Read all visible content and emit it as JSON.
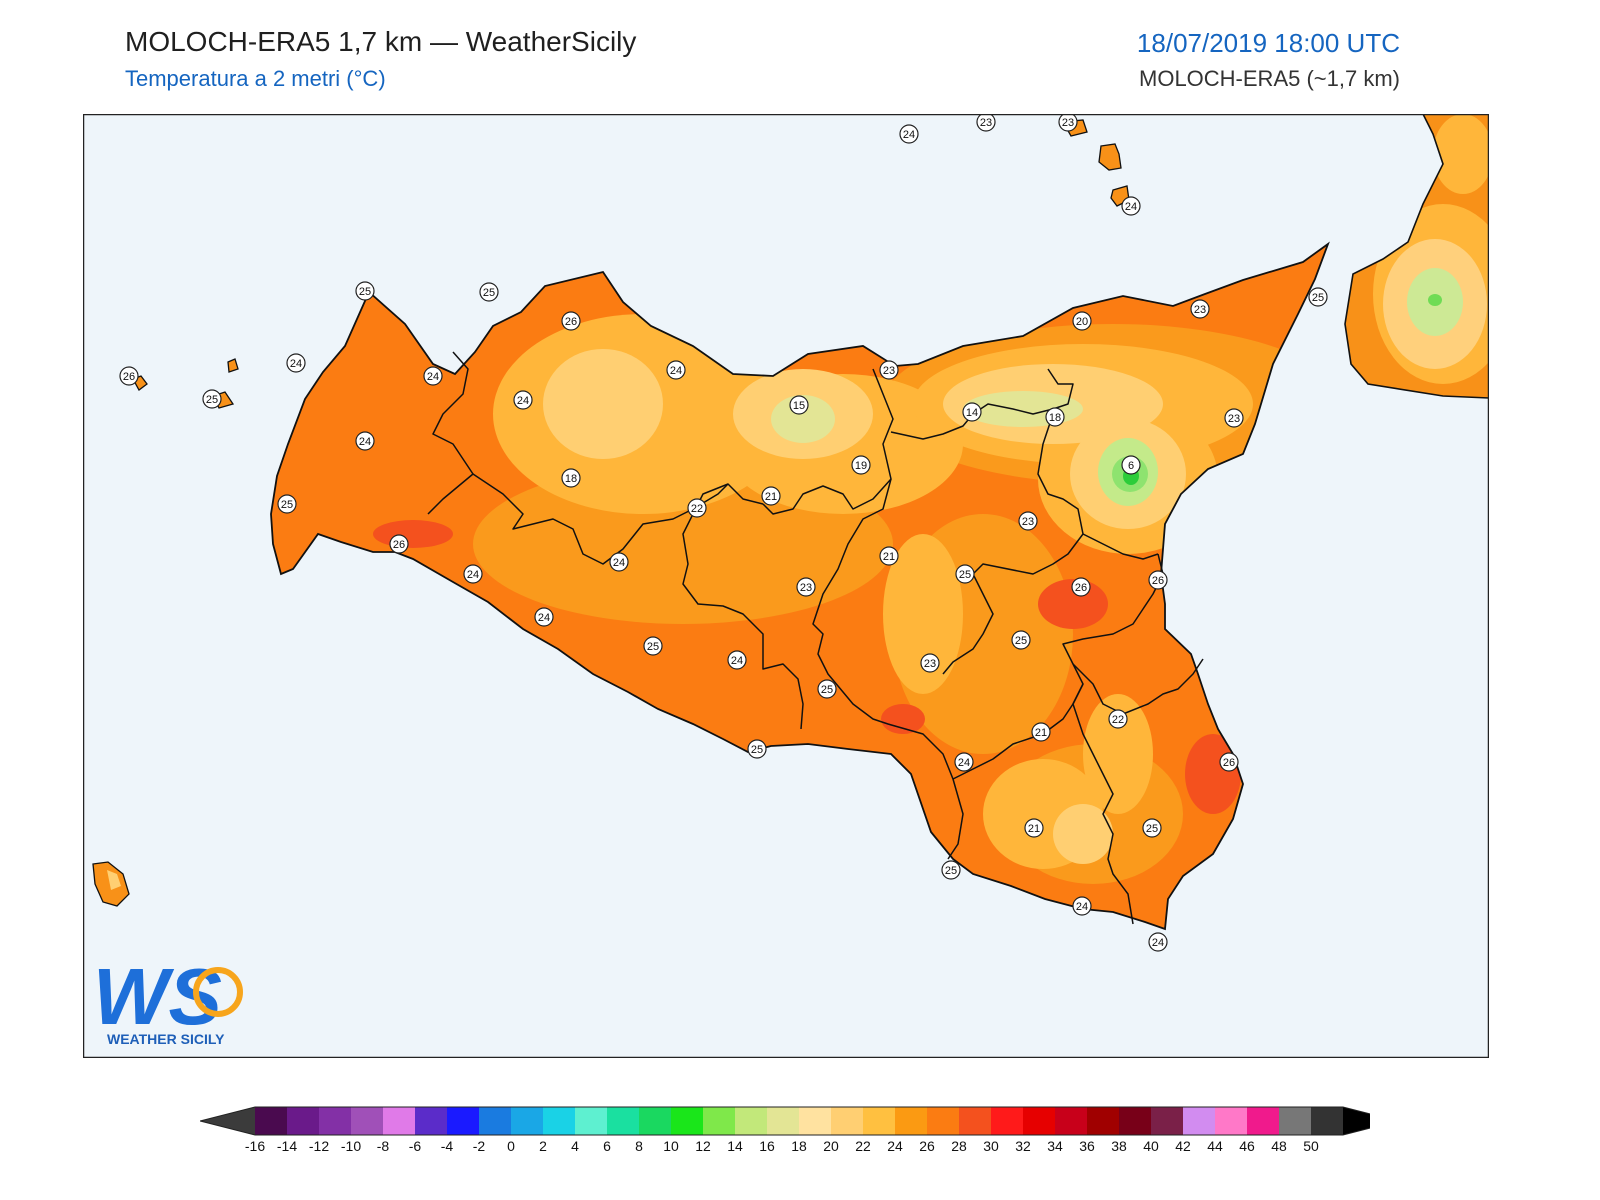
{
  "header": {
    "title": "MOLOCH-ERA5 1,7 km — WeatherSicily",
    "subtitle": "Temperatura a 2 metri (°C)",
    "datetime": "18/07/2019 18:00 UTC",
    "model": "MOLOCH-ERA5 (~1,7 km)"
  },
  "logo": {
    "letters": "WS",
    "name": "WEATHER SICILY"
  },
  "colors": {
    "sea": "#eef5fa",
    "frame": "#222222",
    "land_base": "#fb7c12",
    "land_mid": "#fa9a1c",
    "land_warm": "#ffb63a",
    "land_mild": "#ffcf72",
    "land_cool": "#e3e595",
    "land_cold": "#8ee36f",
    "land_hot": "#f4511e",
    "calabria_outer": "#f89118",
    "calabria_inner": "#ffd07c",
    "calabria_core": "#cde995"
  },
  "stations": [
    {
      "label": "24"
    },
    {
      "label": "23"
    },
    {
      "label": "23"
    },
    {
      "label": "24"
    },
    {
      "label": "25"
    },
    {
      "label": "25"
    },
    {
      "label": "26"
    },
    {
      "label": "24"
    },
    {
      "label": "26"
    },
    {
      "label": "24"
    },
    {
      "label": "25"
    },
    {
      "label": "24"
    },
    {
      "label": "24"
    },
    {
      "label": "25"
    },
    {
      "label": "18"
    },
    {
      "label": "26"
    },
    {
      "label": "24"
    },
    {
      "label": "15"
    },
    {
      "label": "23"
    },
    {
      "label": "19"
    },
    {
      "label": "21"
    },
    {
      "label": "22"
    },
    {
      "label": "24"
    },
    {
      "label": "14"
    },
    {
      "label": "18"
    },
    {
      "label": "20"
    },
    {
      "label": "23"
    },
    {
      "label": "25"
    },
    {
      "label": "23"
    },
    {
      "label": "6"
    },
    {
      "label": "23"
    },
    {
      "label": "21"
    },
    {
      "label": "23"
    },
    {
      "label": "25"
    },
    {
      "label": "26"
    },
    {
      "label": "26"
    },
    {
      "label": "24"
    },
    {
      "label": "24"
    },
    {
      "label": "25"
    },
    {
      "label": "25"
    },
    {
      "label": "25"
    },
    {
      "label": "23"
    },
    {
      "label": "25"
    },
    {
      "label": "22"
    },
    {
      "label": "21"
    },
    {
      "label": "26"
    },
    {
      "label": "25"
    },
    {
      "label": "21"
    },
    {
      "label": "24"
    },
    {
      "label": "25"
    },
    {
      "label": "24"
    },
    {
      "label": "24"
    },
    {
      "label": "24"
    }
  ],
  "colorbar": {
    "labels": [
      "-16",
      "-14",
      "-12",
      "-10",
      "-8",
      "-6",
      "-4",
      "-2",
      "0",
      "2",
      "4",
      "6",
      "8",
      "10",
      "12",
      "14",
      "16",
      "18",
      "20",
      "22",
      "24",
      "26",
      "28",
      "30",
      "32",
      "34",
      "36",
      "38",
      "40",
      "42",
      "44",
      "46",
      "48",
      "50"
    ],
    "colors": [
      "#4a0a4f",
      "#6a1a8a",
      "#8330a6",
      "#a050b8",
      "#e07ae8",
      "#5b2cc9",
      "#1a1aff",
      "#1a7be0",
      "#1aa7e6",
      "#1ad2e6",
      "#5ef0d0",
      "#1ae0a0",
      "#1ad860",
      "#1ae61a",
      "#7fe84a",
      "#c2e87a",
      "#e3e595",
      "#ffe2a0",
      "#ffcf72",
      "#ffc040",
      "#fb9a12",
      "#fb7c12",
      "#f4511e",
      "#ff1a1a",
      "#e60000",
      "#c8001a",
      "#a00000",
      "#780018",
      "#7a2048",
      "#d28cf0",
      "#ff78c8",
      "#f01a8c",
      "#777777",
      "#333333"
    ],
    "under_color": "#3b3b3b",
    "over_color": "#000000"
  }
}
